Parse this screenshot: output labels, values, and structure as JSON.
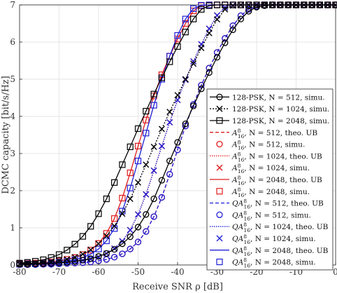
{
  "chart_data": {
    "type": "line",
    "xlabel": "Receive SNR ρ [dB]",
    "ylabel": "DCMC capacity [bit/s/Hz]",
    "xlim": [
      -80,
      0
    ],
    "ylim": [
      0,
      7
    ],
    "xticks": [
      "-80",
      "-70",
      "-60",
      "-50",
      "-40",
      "-30",
      "-20",
      "-10",
      "0"
    ],
    "yticks": [
      "0",
      "1",
      "2",
      "3",
      "4",
      "5",
      "6",
      "7"
    ],
    "grid": true,
    "legend_position": "right",
    "x": [
      -80,
      -78,
      -76,
      -74,
      -72,
      -70,
      -68,
      -66,
      -64,
      -62,
      -60,
      -58,
      -56,
      -54,
      -52,
      -50,
      -48,
      -46,
      -44,
      -42,
      -40,
      -38,
      -36,
      -34,
      -32,
      -30,
      -28,
      -26,
      -24,
      -22,
      -20,
      -18,
      -16,
      -14,
      -12,
      -10,
      -8,
      -6,
      -4,
      -2,
      0
    ],
    "series": [
      {
        "name": "128-PSK, N = 512, simu.",
        "color": "#000000",
        "dash": "",
        "marker": "circle",
        "values": [
          0.02,
          0.02,
          0.03,
          0.03,
          0.04,
          0.06,
          0.07,
          0.1,
          0.13,
          0.17,
          0.23,
          0.31,
          0.42,
          0.57,
          0.76,
          1.02,
          1.36,
          1.78,
          2.28,
          2.8,
          3.3,
          3.8,
          4.28,
          4.74,
          5.18,
          5.59,
          5.98,
          6.33,
          6.62,
          6.83,
          6.94,
          6.98,
          7.0,
          7.0,
          7.0,
          7.0,
          7.0,
          7.0,
          7.0,
          7.0,
          7.0
        ]
      },
      {
        "name": "128-PSK, N = 1024, simu.",
        "color": "#000000",
        "dash": "2,2",
        "marker": "x",
        "values": [
          0.03,
          0.04,
          0.05,
          0.06,
          0.08,
          0.11,
          0.15,
          0.21,
          0.29,
          0.41,
          0.57,
          0.78,
          1.05,
          1.38,
          1.78,
          2.22,
          2.7,
          3.18,
          3.66,
          4.12,
          4.57,
          5.0,
          5.42,
          5.84,
          6.24,
          6.61,
          6.88,
          6.98,
          7.0,
          7.0,
          7.0,
          7.0,
          7.0,
          7.0,
          7.0,
          7.0,
          7.0,
          7.0,
          7.0,
          7.0,
          7.0
        ]
      },
      {
        "name": "128-PSK, N = 2048, simu.",
        "color": "#000000",
        "dash": "",
        "marker": "square",
        "values": [
          0.05,
          0.07,
          0.1,
          0.14,
          0.2,
          0.28,
          0.4,
          0.56,
          0.77,
          1.04,
          1.38,
          1.78,
          2.22,
          2.7,
          3.18,
          3.67,
          4.14,
          4.6,
          5.04,
          5.47,
          5.88,
          6.27,
          6.62,
          6.88,
          6.98,
          7.0,
          7.0,
          7.0,
          7.0,
          7.0,
          7.0,
          7.0,
          7.0,
          7.0,
          7.0,
          7.0,
          7.0,
          7.0,
          7.0,
          7.0,
          7.0
        ]
      },
      {
        "name": "A816, N = 512, theo. UB",
        "color": "#e11b1b",
        "dash": "5,3",
        "marker": "",
        "values": [
          0.01,
          0.01,
          0.01,
          0.02,
          0.02,
          0.03,
          0.04,
          0.05,
          0.06,
          0.08,
          0.11,
          0.15,
          0.21,
          0.3,
          0.43,
          0.62,
          0.9,
          1.3,
          1.82,
          2.44,
          3.1,
          3.74,
          4.32,
          4.84,
          5.3,
          5.72,
          6.1,
          6.44,
          6.71,
          6.88,
          6.96,
          6.99,
          7.0,
          7.0,
          7.0,
          7.0,
          7.0,
          7.0,
          7.0,
          7.0,
          7.0
        ]
      },
      {
        "name": "A816, N = 512, simu.",
        "color": "#e11b1b",
        "dash": "none",
        "marker": "circle",
        "values": [
          0.01,
          0.01,
          0.01,
          0.02,
          0.02,
          0.03,
          0.04,
          0.05,
          0.06,
          0.08,
          0.11,
          0.15,
          0.21,
          0.3,
          0.43,
          0.62,
          0.9,
          1.3,
          1.82,
          2.44,
          3.1,
          3.74,
          4.32,
          4.84,
          5.3,
          5.72,
          6.1,
          6.44,
          6.71,
          6.88,
          6.96,
          6.99,
          7.0,
          7.0,
          7.0,
          7.0,
          7.0,
          7.0,
          7.0,
          7.0,
          7.0
        ]
      },
      {
        "name": "A816, N = 1024, theo. UB",
        "color": "#e11b1b",
        "dash": "1.5,1.5",
        "marker": "",
        "values": [
          0.02,
          0.02,
          0.03,
          0.03,
          0.04,
          0.05,
          0.07,
          0.09,
          0.12,
          0.16,
          0.22,
          0.31,
          0.44,
          0.64,
          0.94,
          1.36,
          1.9,
          2.54,
          3.2,
          3.84,
          4.44,
          4.98,
          5.48,
          5.94,
          6.36,
          6.72,
          6.93,
          6.99,
          7.0,
          7.0,
          7.0,
          7.0,
          7.0,
          7.0,
          7.0,
          7.0,
          7.0,
          7.0,
          7.0,
          7.0,
          7.0
        ]
      },
      {
        "name": "A816, N = 1024, simu.",
        "color": "#e11b1b",
        "dash": "none",
        "marker": "x",
        "values": [
          0.02,
          0.02,
          0.03,
          0.03,
          0.04,
          0.05,
          0.07,
          0.09,
          0.12,
          0.16,
          0.22,
          0.31,
          0.44,
          0.64,
          0.94,
          1.36,
          1.9,
          2.54,
          3.2,
          3.84,
          4.44,
          4.98,
          5.48,
          5.94,
          6.36,
          6.72,
          6.93,
          6.99,
          7.0,
          7.0,
          7.0,
          7.0,
          7.0,
          7.0,
          7.0,
          7.0,
          7.0,
          7.0,
          7.0,
          7.0,
          7.0
        ]
      },
      {
        "name": "A816, N = 2048, theo. UB",
        "color": "#e11b1b",
        "dash": "",
        "marker": "",
        "values": [
          0.03,
          0.04,
          0.05,
          0.06,
          0.08,
          0.11,
          0.15,
          0.2,
          0.28,
          0.4,
          0.58,
          0.85,
          1.25,
          1.8,
          2.48,
          3.2,
          3.9,
          4.55,
          5.12,
          5.62,
          6.08,
          6.5,
          6.84,
          6.98,
          7.0,
          7.0,
          7.0,
          7.0,
          7.0,
          7.0,
          7.0,
          7.0,
          7.0,
          7.0,
          7.0,
          7.0,
          7.0,
          7.0,
          7.0,
          7.0,
          7.0
        ]
      },
      {
        "name": "A816, N = 2048, simu.",
        "color": "#e11b1b",
        "dash": "none",
        "marker": "square",
        "values": [
          0.03,
          0.04,
          0.05,
          0.06,
          0.08,
          0.11,
          0.15,
          0.2,
          0.28,
          0.4,
          0.58,
          0.85,
          1.25,
          1.8,
          2.48,
          3.2,
          3.9,
          4.55,
          5.12,
          5.62,
          6.08,
          6.5,
          6.84,
          6.98,
          7.0,
          7.0,
          7.0,
          7.0,
          7.0,
          7.0,
          7.0,
          7.0,
          7.0,
          7.0,
          7.0,
          7.0,
          7.0,
          7.0,
          7.0,
          7.0,
          7.0
        ]
      },
      {
        "name": "QA816, N = 512, theo. UB",
        "color": "#1f1fd6",
        "dash": "5,3",
        "marker": "",
        "values": [
          0.01,
          0.01,
          0.01,
          0.02,
          0.02,
          0.03,
          0.04,
          0.05,
          0.06,
          0.08,
          0.11,
          0.15,
          0.21,
          0.3,
          0.43,
          0.62,
          0.9,
          1.3,
          1.82,
          2.44,
          3.1,
          3.74,
          4.32,
          4.84,
          5.3,
          5.72,
          6.1,
          6.44,
          6.71,
          6.88,
          6.96,
          6.99,
          7.0,
          7.0,
          7.0,
          7.0,
          7.0,
          7.0,
          7.0,
          7.0,
          7.0
        ]
      },
      {
        "name": "QA816, N = 512, simu.",
        "color": "#1f1fd6",
        "dash": "none",
        "marker": "circle",
        "values": [
          0.01,
          0.01,
          0.01,
          0.02,
          0.02,
          0.03,
          0.04,
          0.05,
          0.06,
          0.08,
          0.11,
          0.15,
          0.21,
          0.3,
          0.43,
          0.62,
          0.9,
          1.3,
          1.82,
          2.44,
          3.1,
          3.74,
          4.32,
          4.84,
          5.3,
          5.72,
          6.1,
          6.44,
          6.71,
          6.88,
          6.96,
          6.99,
          7.0,
          7.0,
          7.0,
          7.0,
          7.0,
          7.0,
          7.0,
          7.0,
          7.0
        ]
      },
      {
        "name": "QA816, N = 1024, theo. UB",
        "color": "#1f1fd6",
        "dash": "1.5,1.5",
        "marker": "",
        "values": [
          0.02,
          0.02,
          0.03,
          0.03,
          0.04,
          0.05,
          0.07,
          0.09,
          0.12,
          0.16,
          0.22,
          0.31,
          0.44,
          0.64,
          0.94,
          1.36,
          1.9,
          2.54,
          3.2,
          3.84,
          4.44,
          4.98,
          5.48,
          5.94,
          6.36,
          6.72,
          6.93,
          6.99,
          7.0,
          7.0,
          7.0,
          7.0,
          7.0,
          7.0,
          7.0,
          7.0,
          7.0,
          7.0,
          7.0,
          7.0,
          7.0
        ]
      },
      {
        "name": "QA816, N = 1024, simu.",
        "color": "#1f1fd6",
        "dash": "none",
        "marker": "x",
        "values": [
          0.02,
          0.02,
          0.03,
          0.03,
          0.04,
          0.05,
          0.07,
          0.09,
          0.12,
          0.16,
          0.22,
          0.31,
          0.44,
          0.64,
          0.94,
          1.36,
          1.9,
          2.54,
          3.2,
          3.84,
          4.44,
          4.98,
          5.48,
          5.94,
          6.36,
          6.72,
          6.93,
          6.99,
          7.0,
          7.0,
          7.0,
          7.0,
          7.0,
          7.0,
          7.0,
          7.0,
          7.0,
          7.0,
          7.0,
          7.0,
          7.0
        ]
      },
      {
        "name": "QA816, N = 2048, theo. UB",
        "color": "#1f1fd6",
        "dash": "",
        "marker": "",
        "values": [
          0.02,
          0.03,
          0.03,
          0.04,
          0.06,
          0.08,
          0.1,
          0.14,
          0.2,
          0.29,
          0.43,
          0.65,
          0.98,
          1.45,
          2.07,
          2.8,
          3.55,
          4.3,
          5.0,
          5.62,
          6.18,
          6.62,
          6.9,
          6.99,
          7.0,
          7.0,
          7.0,
          7.0,
          7.0,
          7.0,
          7.0,
          7.0,
          7.0,
          7.0,
          7.0,
          7.0,
          7.0,
          7.0,
          7.0,
          7.0,
          7.0
        ]
      },
      {
        "name": "QA816, N = 2048, simu.",
        "color": "#1f1fd6",
        "dash": "none",
        "marker": "square",
        "values": [
          0.02,
          0.03,
          0.03,
          0.04,
          0.06,
          0.08,
          0.1,
          0.14,
          0.2,
          0.29,
          0.43,
          0.65,
          0.98,
          1.45,
          2.07,
          2.8,
          3.55,
          4.3,
          5.0,
          5.62,
          6.18,
          6.62,
          6.9,
          6.99,
          7.0,
          7.0,
          7.0,
          7.0,
          7.0,
          7.0,
          7.0,
          7.0,
          7.0,
          7.0,
          7.0,
          7.0,
          7.0,
          7.0,
          7.0,
          7.0,
          7.0
        ]
      }
    ],
    "legend": [
      {
        "prefix": "",
        "base": "128-PSK",
        "rest": ", N = 512, simu."
      },
      {
        "prefix": "",
        "base": "128-PSK",
        "rest": ", N = 1024, simu."
      },
      {
        "prefix": "",
        "base": "128-PSK",
        "rest": ", N = 2048, simu."
      },
      {
        "prefix": "",
        "base": "A",
        "sup": "8",
        "sub": "16",
        "rest": ", N = 512, theo. UB"
      },
      {
        "prefix": "",
        "base": "A",
        "sup": "8",
        "sub": "16",
        "rest": ", N = 512, simu."
      },
      {
        "prefix": "",
        "base": "A",
        "sup": "8",
        "sub": "16",
        "rest": ", N = 1024, theo. UB"
      },
      {
        "prefix": "",
        "base": "A",
        "sup": "8",
        "sub": "16",
        "rest": ", N = 1024, simu."
      },
      {
        "prefix": "",
        "base": "A",
        "sup": "8",
        "sub": "16",
        "rest": ", N = 2048, theo. UB"
      },
      {
        "prefix": "",
        "base": "A",
        "sup": "8",
        "sub": "16",
        "rest": ", N = 2048, simu."
      },
      {
        "prefix": "Q",
        "base": "A",
        "sup": "8",
        "sub": "16",
        "rest": ", N = 512, theo. UB"
      },
      {
        "prefix": "Q",
        "base": "A",
        "sup": "8",
        "sub": "16",
        "rest": ", N = 512, simu."
      },
      {
        "prefix": "Q",
        "base": "A",
        "sup": "8",
        "sub": "16",
        "rest": ", N = 1024, theo. UB"
      },
      {
        "prefix": "Q",
        "base": "A",
        "sup": "8",
        "sub": "16",
        "rest": ", N = 1024, simu."
      },
      {
        "prefix": "Q",
        "base": "A",
        "sup": "8",
        "sub": "16",
        "rest": ", N = 2048, theo. UB"
      },
      {
        "prefix": "Q",
        "base": "A",
        "sup": "8",
        "sub": "16",
        "rest": ", N = 2048, simu."
      }
    ]
  }
}
